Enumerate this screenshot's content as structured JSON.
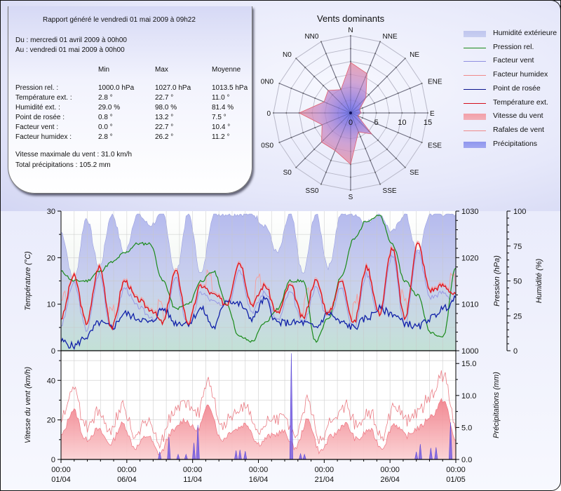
{
  "report": {
    "generated": "Rapport généré le vendredi 01 mai 2009 à 09h22",
    "from": "Du : mercredi 01 avril 2009 à 00h00",
    "to": "Au : vendredi 01 mai 2009 à 00h00",
    "columns": [
      "Min",
      "Max",
      "Moyenne"
    ],
    "rows": [
      {
        "label": "Pression rel. :",
        "min": "1000.0 hPa",
        "max": "1027.0 hPa",
        "avg": "1013.5 hPa"
      },
      {
        "label": "Température ext. :",
        "min": "2.8 °",
        "max": "22.7 °",
        "avg": "11.0 °"
      },
      {
        "label": "Humidité ext. :",
        "min": "29.0 %",
        "max": "98.0 %",
        "avg": "81.4 %"
      },
      {
        "label": "Point de rosée :",
        "min": "0.8 °",
        "max": "13.2 °",
        "avg": "7.5 °"
      },
      {
        "label": "Facteur vent :",
        "min": "0.0 °",
        "max": "22.7 °",
        "avg": "10.4 °"
      },
      {
        "label": "Facteur humidex :",
        "min": "2.8 °",
        "max": "26.2 °",
        "avg": "11.2 °"
      }
    ],
    "max_wind": "Vitesse maximale du vent : 31.0 km/h",
    "total_rain": "Total précipitations : 105.2 mm"
  },
  "legend": [
    {
      "label": "Humidité extérieure",
      "kind": "area",
      "color": "#bfc6ee"
    },
    {
      "label": "Pression rel.",
      "kind": "line",
      "color": "#1a8a1a"
    },
    {
      "label": "Facteur vent",
      "kind": "line",
      "color": "#8f8fe0"
    },
    {
      "label": "Facteur humidex",
      "kind": "line",
      "color": "#f08a8a"
    },
    {
      "label": "Point de rosée",
      "kind": "line",
      "color": "#0a148c"
    },
    {
      "label": "Température ext.",
      "kind": "line",
      "color": "#d40f1c"
    },
    {
      "label": "Vitesse du vent",
      "kind": "area",
      "color": "#f3a0a8"
    },
    {
      "label": "Rafales de vent",
      "kind": "line",
      "color": "#ee8a8a"
    },
    {
      "label": "Précipitations",
      "kind": "area",
      "color": "#8f96ee"
    }
  ],
  "chart_data": [
    {
      "type": "radar",
      "title": "Vents dominants",
      "directions": [
        "N",
        "NNE",
        "NE",
        "ENE",
        "E",
        "ESE",
        "SE",
        "SSE",
        "S",
        "SS0",
        "S0",
        "0S0",
        "0",
        "0N0",
        "N0",
        "NN0"
      ],
      "values": [
        9.8,
        8.3,
        4.2,
        1.9,
        2.0,
        1.5,
        5.8,
        4.0,
        10.0,
        7.9,
        8.0,
        6.0,
        10.0,
        5.6,
        6.2,
        4.9
      ],
      "radial_ticks": [
        "0",
        "5",
        "10",
        "15"
      ],
      "rmax": 15
    },
    {
      "type": "line",
      "title": "",
      "x_ticks": [
        {
          "time": "00:00",
          "date": "01/04"
        },
        {
          "time": "00:00",
          "date": "06/04"
        },
        {
          "time": "00:00",
          "date": "11/04"
        },
        {
          "time": "00:00",
          "date": "16/04"
        },
        {
          "time": "00:00",
          "date": "21/04"
        },
        {
          "time": "00:00",
          "date": "26/04"
        },
        {
          "time": "00:00",
          "date": "01/05"
        }
      ],
      "days": 30,
      "y_left": {
        "label": "Température (°C)",
        "range": [
          0,
          30
        ],
        "ticks": [
          "0",
          "10",
          "20",
          "30"
        ]
      },
      "y_right1": {
        "label": "Pression (hPa)",
        "range": [
          1000,
          1030
        ],
        "ticks": [
          "1000",
          "1010",
          "1020",
          "1030"
        ]
      },
      "y_right2": {
        "label": "Humidité (%)",
        "range": [
          0,
          100
        ],
        "ticks": [
          "0",
          "25",
          "50",
          "75",
          "100"
        ]
      },
      "series": [
        {
          "name": "Température ext.",
          "axis": "temp",
          "day_values": [
            7,
            16,
            6,
            18,
            5,
            15,
            11,
            9,
            6,
            17,
            6,
            14,
            12,
            10,
            19,
            10,
            14,
            8,
            14,
            7,
            15,
            8,
            15,
            6,
            18,
            8,
            22,
            7,
            23,
            13,
            14,
            12
          ]
        },
        {
          "name": "Point de rosée",
          "axis": "temp",
          "day_values": [
            2,
            1,
            3,
            6,
            5,
            8,
            7,
            6,
            9,
            6,
            6,
            9,
            5,
            11,
            10,
            7,
            11,
            6,
            6,
            6,
            5,
            8,
            6,
            5,
            7,
            9,
            8,
            6,
            5,
            7,
            9,
            11
          ]
        },
        {
          "name": "Pression rel.",
          "axis": "pres",
          "day_values": [
            1017,
            1015,
            1015,
            1017,
            1019,
            1021,
            1023,
            1023,
            1015,
            1009,
            1010,
            1015,
            1017,
            1010,
            1003,
            1002,
            1006,
            1009,
            1015,
            1015,
            1002,
            1007,
            1016,
            1024,
            1028,
            1029,
            1023,
            1015,
            1012,
            1004,
            1003,
            1018
          ]
        },
        {
          "name": "Humidité extérieure",
          "axis": "hum",
          "day_values": [
            85,
            50,
            95,
            60,
            98,
            70,
            98,
            90,
            98,
            55,
            98,
            55,
            98,
            98,
            98,
            98,
            90,
            70,
            98,
            55,
            98,
            60,
            98,
            98,
            92,
            98,
            85,
            98,
            70,
            98,
            98,
            98
          ]
        }
      ]
    },
    {
      "type": "area",
      "title": "",
      "y_left": {
        "label": "Vitesse du vent (km/h)",
        "range": [
          0,
          55
        ],
        "ticks": [
          "0",
          "20",
          "40"
        ]
      },
      "y_right": {
        "label": "Précipitations (mm)",
        "range": [
          0,
          17
        ],
        "ticks": [
          "0.0",
          "5.0",
          "10.0",
          "15.0"
        ]
      },
      "series": [
        {
          "name": "Vitesse du vent",
          "axis": "wind",
          "day_values": [
            12,
            25,
            10,
            15,
            8,
            18,
            6,
            12,
            3,
            14,
            20,
            15,
            27,
            10,
            15,
            18,
            8,
            12,
            14,
            6,
            20,
            4,
            12,
            18,
            10,
            15,
            6,
            18,
            12,
            16,
            22,
            30,
            10
          ]
        },
        {
          "name": "Rafales de vent",
          "axis": "wind",
          "day_values": [
            16,
            32,
            14,
            22,
            10,
            24,
            8,
            16,
            4,
            20,
            28,
            22,
            40,
            14,
            20,
            26,
            10,
            16,
            20,
            8,
            27,
            5,
            16,
            24,
            14,
            20,
            8,
            24,
            16,
            22,
            28,
            40,
            14
          ]
        },
        {
          "name": "Précipitations",
          "axis": "rain",
          "events": [
            [
              7.5,
              1.2
            ],
            [
              8.2,
              3.5
            ],
            [
              8.9,
              0.8
            ],
            [
              9.5,
              0.8
            ],
            [
              10.1,
              2.6
            ],
            [
              10.4,
              5.4
            ],
            [
              13.3,
              1.4
            ],
            [
              13.6,
              1.5
            ],
            [
              14.0,
              1.3
            ],
            [
              17.5,
              16.6
            ],
            [
              18.2,
              0.9
            ],
            [
              18.5,
              0.8
            ],
            [
              27.0,
              1.2
            ],
            [
              27.3,
              2.4
            ],
            [
              28.1,
              1.8
            ],
            [
              28.5,
              1.9
            ],
            [
              29.6,
              5.8
            ]
          ]
        }
      ]
    }
  ]
}
